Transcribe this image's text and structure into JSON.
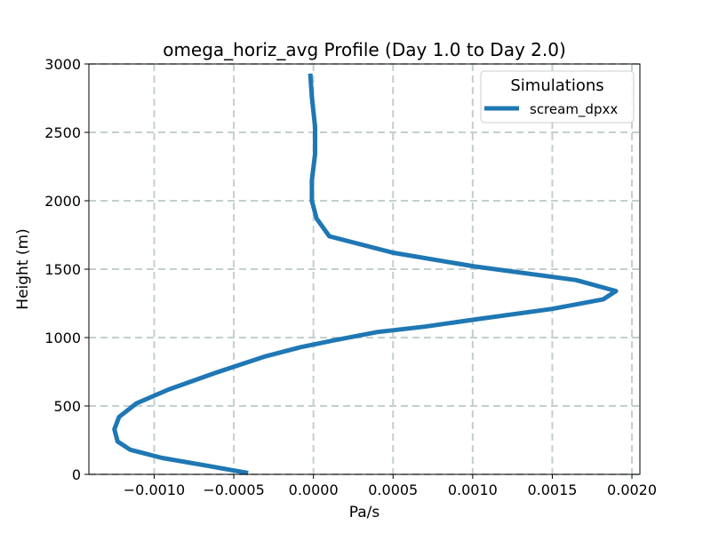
{
  "chart_data": {
    "type": "line",
    "title": "omega_horiz_avg Profile (Day 1.0 to Day 2.0)",
    "xlabel": "Pa/s",
    "ylabel": "Height (m)",
    "xlim": [
      -0.00141,
      0.00205
    ],
    "ylim": [
      0,
      3000
    ],
    "xticks": [
      -0.001,
      -0.0005,
      0,
      0.0005,
      0.001,
      0.0015,
      0.002
    ],
    "xtick_labels": [
      "−0.0010",
      "−0.0005",
      "0.0000",
      "0.0005",
      "0.0010",
      "0.0015",
      "0.0020"
    ],
    "yticks": [
      0,
      500,
      1000,
      1500,
      2000,
      2500,
      3000
    ],
    "ytick_labels": [
      "0",
      "500",
      "1000",
      "1500",
      "2000",
      "2500",
      "3000"
    ],
    "grid": true,
    "legend": {
      "title": "Simulations",
      "placement": "top-right"
    },
    "series": [
      {
        "name": "scream_dpxx",
        "color": "#1f77b4",
        "points": [
          {
            "x": -0.00041,
            "y": 10
          },
          {
            "x": -0.00065,
            "y": 60
          },
          {
            "x": -0.00095,
            "y": 120
          },
          {
            "x": -0.00115,
            "y": 180
          },
          {
            "x": -0.00123,
            "y": 240
          },
          {
            "x": -0.00125,
            "y": 330
          },
          {
            "x": -0.00122,
            "y": 420
          },
          {
            "x": -0.00111,
            "y": 520
          },
          {
            "x": -0.00091,
            "y": 620
          },
          {
            "x": -0.00062,
            "y": 740
          },
          {
            "x": -0.00031,
            "y": 860
          },
          {
            "x": -8e-05,
            "y": 930
          },
          {
            "x": 0.00013,
            "y": 980
          },
          {
            "x": 0.0004,
            "y": 1040
          },
          {
            "x": 0.0007,
            "y": 1080
          },
          {
            "x": 0.001,
            "y": 1130
          },
          {
            "x": 0.0015,
            "y": 1210
          },
          {
            "x": 0.00182,
            "y": 1280
          },
          {
            "x": 0.0019,
            "y": 1340
          },
          {
            "x": 0.00165,
            "y": 1420
          },
          {
            "x": 0.00101,
            "y": 1520
          },
          {
            "x": 0.0005,
            "y": 1620
          },
          {
            "x": 0.0001,
            "y": 1740
          },
          {
            "x": 2e-05,
            "y": 1870
          },
          {
            "x": -1e-05,
            "y": 2000
          },
          {
            "x": -1e-05,
            "y": 2150
          },
          {
            "x": 1e-05,
            "y": 2340
          },
          {
            "x": 1e-05,
            "y": 2540
          },
          {
            "x": -1e-05,
            "y": 2760
          },
          {
            "x": -2e-05,
            "y": 2930
          }
        ]
      }
    ]
  }
}
